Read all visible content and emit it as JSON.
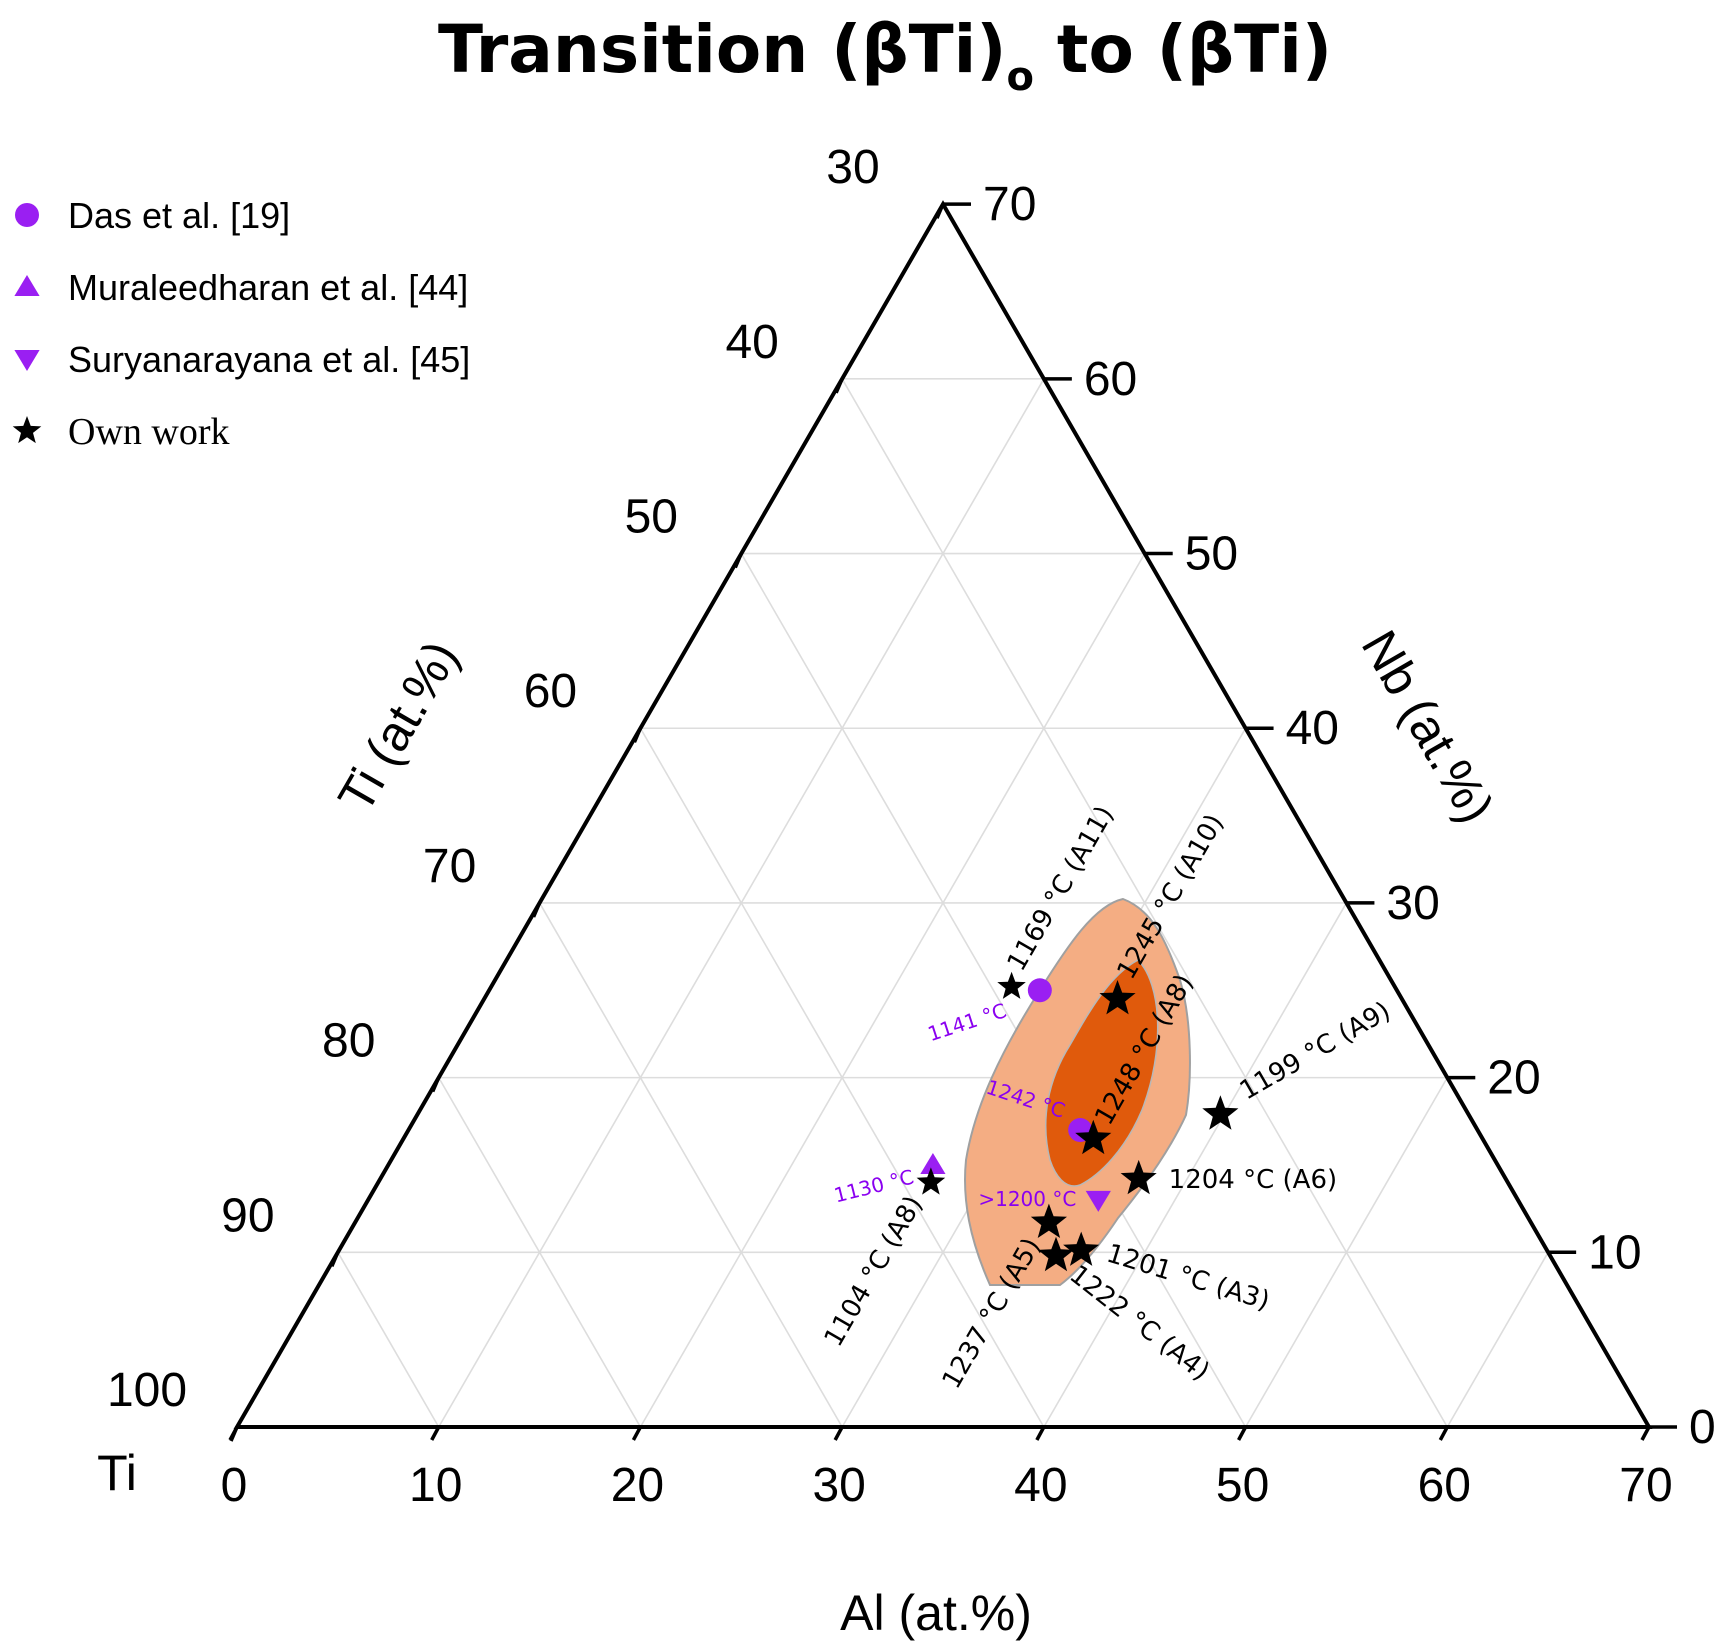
{
  "chart_data": {
    "type": "scatter",
    "subtype": "ternary",
    "title": "Transition (βTi)",
    "title_subscript": "o",
    "title_tail": " to (βTi)",
    "corner_label": "Ti",
    "axes": {
      "al": {
        "label": "Al (at.%)",
        "range": [
          0,
          70
        ],
        "ticks": [
          "0",
          "10",
          "20",
          "30",
          "40",
          "50",
          "60",
          "70"
        ]
      },
      "nb": {
        "label": "Nb (at.%)",
        "range": [
          0,
          70
        ],
        "ticks": [
          "0",
          "10",
          "20",
          "30",
          "40",
          "50",
          "60",
          "70"
        ]
      },
      "ti": {
        "label": "Ti (at.%)",
        "range": [
          30,
          100
        ],
        "ticks": [
          "30",
          "40",
          "50",
          "60",
          "70",
          "80",
          "90",
          "100"
        ]
      }
    },
    "legend": [
      {
        "name": "Das et al. [19]",
        "marker": "circle"
      },
      {
        "name": "Muraleedharan et al. [44]",
        "marker": "triangle-up"
      },
      {
        "name": "Suryanarayana et al. [45]",
        "marker": "triangle-down"
      },
      {
        "name": "Own work",
        "marker": "star"
      }
    ],
    "series": [
      {
        "name": "Das et al. [19]",
        "points": [
          {
            "al": 27.3,
            "nb": 25,
            "label": "1141 °C"
          },
          {
            "al": 33.3,
            "nb": 17,
            "label": "1242 °C"
          }
        ]
      },
      {
        "name": "Muraleedharan et al. [44]",
        "points": [
          {
            "al": 27,
            "nb": 15,
            "label": "1130 °C"
          }
        ]
      },
      {
        "name": "Suryanarayana et al. [45]",
        "points": [
          {
            "al": 36.2,
            "nb": 13,
            "label": ">1200 °C"
          }
        ]
      },
      {
        "name": "Own work",
        "points": [
          {
            "al": 25.8,
            "nb": 25.2,
            "label": "1169 °C (A11)"
          },
          {
            "al": 31.4,
            "nb": 24.5,
            "label": "1245 °C (A10)"
          },
          {
            "al": 34.2,
            "nb": 16.5,
            "label": "1248 °C (A8)"
          },
          {
            "al": 39.8,
            "nb": 17.9,
            "label": "1199 °C (A9)"
          },
          {
            "al": 37.6,
            "nb": 14.2,
            "label": "1204 °C (A6)"
          },
          {
            "al": 27.4,
            "nb": 14.0,
            "label": "1104 °C (A8)"
          },
          {
            "al": 34.4,
            "nb": 11.7,
            "label": "1237 °C (A5)"
          },
          {
            "al": 36.8,
            "nb": 10.1,
            "label": "1201 °C (A3)"
          },
          {
            "al": 35.7,
            "nb": 9.8,
            "label": "1222 °C (A4)"
          }
        ]
      }
    ],
    "regions": [
      {
        "name": "outer",
        "color": "#f4ad83"
      },
      {
        "name": "inner",
        "color": "#e05a0c"
      }
    ],
    "colors": {
      "purple": "#9a1ff2",
      "black": "#000000",
      "grid": "#dddddd"
    }
  }
}
